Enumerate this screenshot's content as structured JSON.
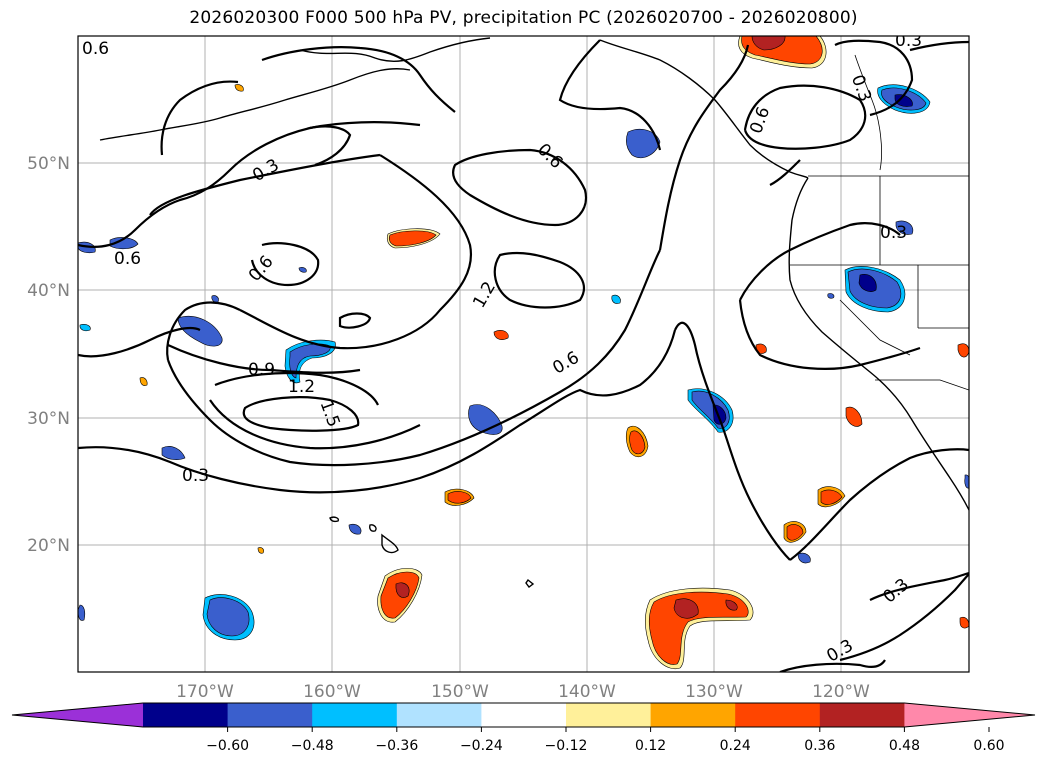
{
  "title": "2026020300 F000 500 hPa PV, precipitation PC (2026020700 - 2026020800)",
  "map": {
    "lat_labels": [
      "50°N",
      "40°N",
      "30°N",
      "20°N"
    ],
    "lon_labels": [
      "170°W",
      "160°W",
      "150°W",
      "140°W",
      "130°W",
      "120°W"
    ],
    "contour_labels": [
      "0.6",
      "0.3",
      "0.6",
      "0.6",
      "0.6",
      "0.3",
      "1.2",
      "0.6",
      "0.9",
      "1.2",
      "1.5",
      "0.3",
      "0.3",
      "0.6",
      "0.3",
      "0.3",
      "0.3"
    ]
  },
  "colorbar": {
    "colors": [
      "#9b30d8",
      "#00008b",
      "#3a5fcd",
      "#00bfff",
      "#b0e2ff",
      "#ffffff",
      "#fff09a",
      "#ffa500",
      "#ff4500",
      "#b22222",
      "#ff88aa"
    ],
    "ticks": [
      "−0.60",
      "−0.48",
      "−0.36",
      "−0.24",
      "−0.12",
      "0.12",
      "0.24",
      "0.36",
      "0.48",
      "0.60"
    ]
  }
}
